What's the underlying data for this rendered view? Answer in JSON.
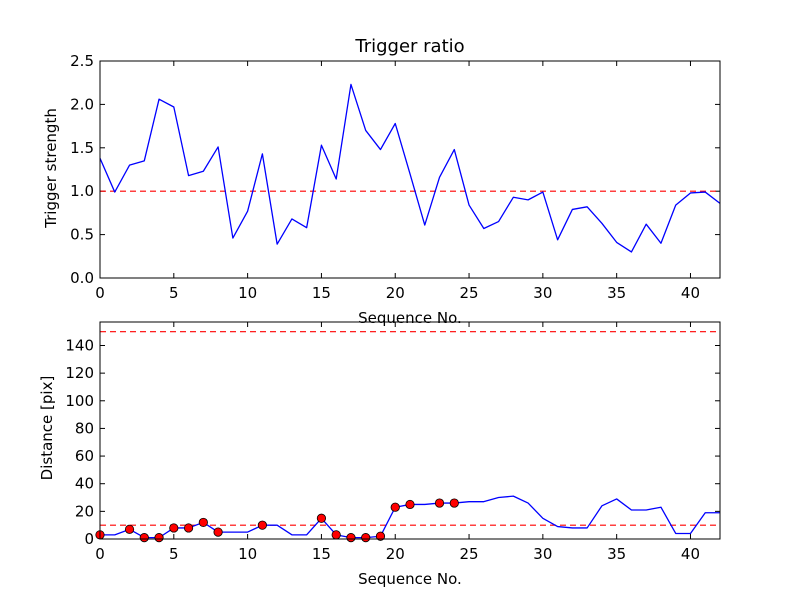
{
  "chart_data": [
    {
      "type": "line",
      "title": "Trigger ratio",
      "xlabel": "Sequence No.",
      "ylabel": "Trigger strength",
      "xlim": [
        0,
        42
      ],
      "ylim": [
        0,
        2.5
      ],
      "xticks": [
        0,
        5,
        10,
        15,
        20,
        25,
        30,
        35,
        40
      ],
      "xtick_labels": [
        "0",
        "5",
        "10",
        "15",
        "20",
        "25",
        "30",
        "35",
        "40"
      ],
      "yticks": [
        0,
        0.5,
        1.0,
        1.5,
        2.0,
        2.5
      ],
      "ytick_labels": [
        "0.0",
        "0.5",
        "1.0",
        "1.5",
        "2.0",
        "2.5"
      ],
      "series": [
        {
          "name": "trigger strength",
          "color": "#0000ff",
          "x": [
            0,
            1,
            2,
            3,
            4,
            5,
            6,
            7,
            8,
            9,
            10,
            11,
            12,
            13,
            14,
            15,
            16,
            17,
            18,
            19,
            20,
            21,
            22,
            23,
            24,
            25,
            26,
            27,
            28,
            29,
            30,
            31,
            32,
            33,
            34,
            35,
            36,
            37,
            38,
            39,
            40,
            41,
            42
          ],
          "y": [
            1.38,
            0.99,
            1.3,
            1.35,
            2.06,
            1.97,
            1.18,
            1.23,
            1.51,
            0.46,
            0.77,
            1.43,
            0.39,
            0.68,
            0.58,
            1.53,
            1.14,
            2.23,
            1.7,
            1.48,
            1.78,
            1.2,
            0.61,
            1.16,
            1.48,
            0.84,
            0.57,
            0.65,
            0.93,
            0.9,
            0.99,
            0.44,
            0.79,
            0.82,
            0.63,
            0.41,
            0.3,
            0.62,
            0.4,
            0.84,
            0.98,
            0.99,
            0.86
          ]
        }
      ],
      "hlines": [
        {
          "y": 1.0,
          "color": "#ff0000",
          "style": "dashed"
        }
      ]
    },
    {
      "type": "line",
      "title": "",
      "xlabel": "Sequence No.",
      "ylabel": "Distance [pix]",
      "xlim": [
        0,
        42
      ],
      "ylim": [
        0,
        157
      ],
      "xticks": [
        0,
        5,
        10,
        15,
        20,
        25,
        30,
        35,
        40
      ],
      "xtick_labels": [
        "0",
        "5",
        "10",
        "15",
        "20",
        "25",
        "30",
        "35",
        "40"
      ],
      "yticks": [
        0,
        20,
        40,
        60,
        80,
        100,
        120,
        140
      ],
      "ytick_labels": [
        "0",
        "20",
        "40",
        "60",
        "80",
        "100",
        "120",
        "140"
      ],
      "series": [
        {
          "name": "distance",
          "color": "#0000ff",
          "x": [
            0,
            1,
            2,
            3,
            4,
            5,
            6,
            7,
            8,
            9,
            10,
            11,
            12,
            13,
            14,
            15,
            16,
            17,
            18,
            19,
            20,
            21,
            22,
            23,
            24,
            25,
            26,
            27,
            28,
            29,
            30,
            31,
            32,
            33,
            34,
            35,
            36,
            37,
            38,
            39,
            40,
            41,
            42
          ],
          "y": [
            3,
            3,
            7,
            1,
            1,
            8,
            8,
            12,
            5,
            5,
            5,
            10,
            10,
            3,
            3,
            15,
            3,
            1,
            1,
            2,
            23,
            25,
            25,
            26,
            26,
            27,
            27,
            30,
            31,
            26,
            15,
            9,
            8,
            8,
            24,
            29,
            21,
            21,
            23,
            4,
            4,
            19,
            19
          ]
        }
      ],
      "markers": {
        "color": "#ff0000",
        "edge": "#000000",
        "x": [
          0,
          2,
          3,
          4,
          5,
          6,
          7,
          8,
          11,
          15,
          16,
          17,
          18,
          19,
          20,
          21,
          23,
          24
        ],
        "y": [
          3,
          7,
          1,
          1,
          8,
          8,
          12,
          5,
          10,
          15,
          3,
          1,
          1,
          2,
          23,
          25,
          26,
          26
        ]
      },
      "hlines": [
        {
          "y": 150,
          "color": "#ff0000",
          "style": "dashed"
        },
        {
          "y": 10,
          "color": "#ff0000",
          "style": "dashed"
        }
      ]
    }
  ]
}
